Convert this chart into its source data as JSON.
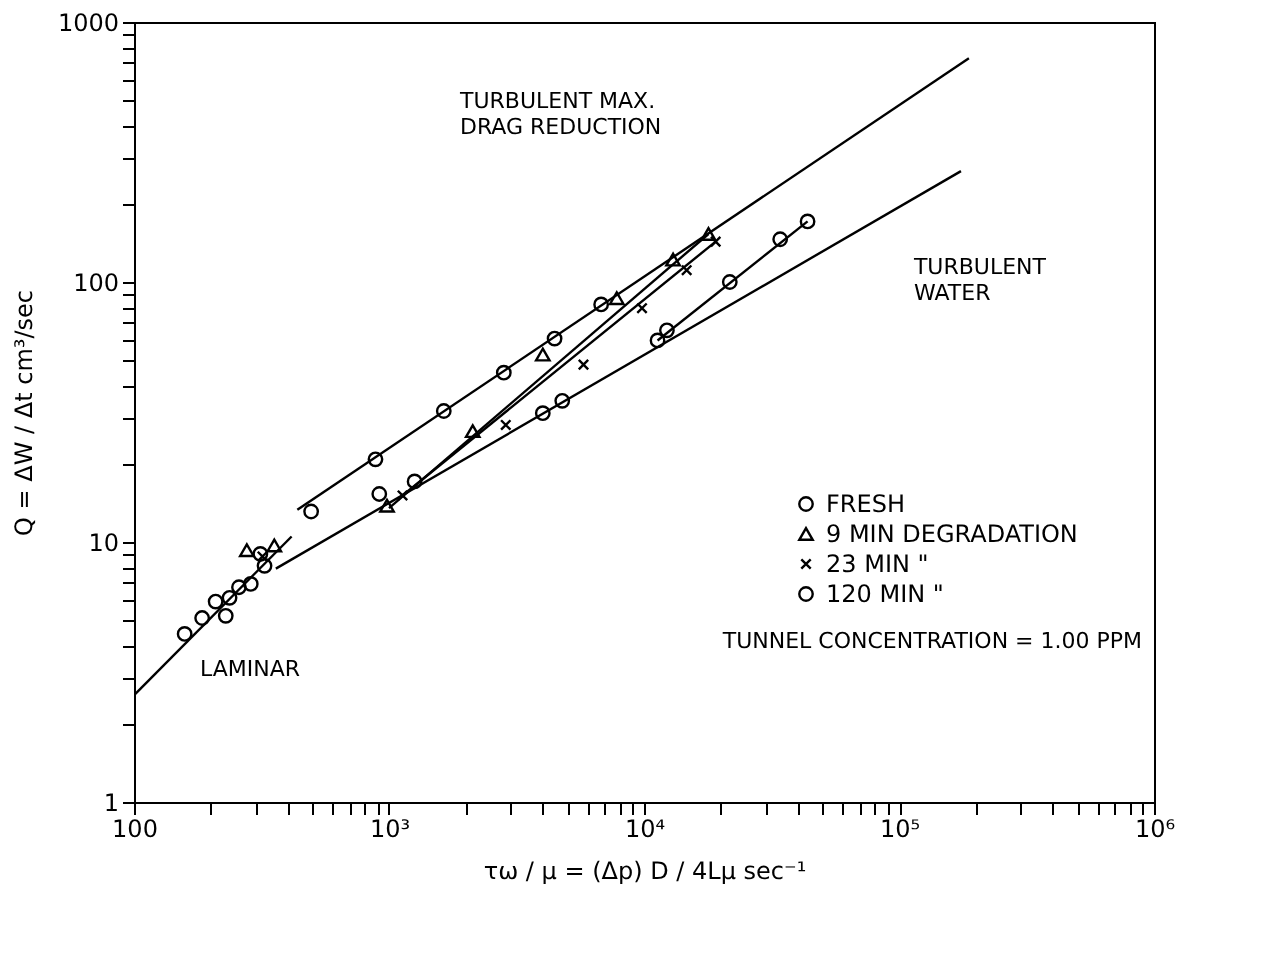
{
  "chart_data": {
    "type": "scatter",
    "xlabel": "τω / μ = (Δp) D / 4Lμ  sec⁻¹",
    "ylabel": "Q = ΔW / Δt  cm³/sec",
    "log": "xy",
    "grid": false,
    "legend": "bottom right",
    "xlim": [
      100,
      1000000
    ],
    "ylim": [
      1,
      1000
    ],
    "xticks": [
      {
        "value": 100,
        "label": "100"
      },
      {
        "value": 200,
        "label": null
      },
      {
        "value": 300,
        "label": null
      },
      {
        "value": 400,
        "label": null
      },
      {
        "value": 500,
        "label": null
      },
      {
        "value": 600,
        "label": null
      },
      {
        "value": 700,
        "label": null
      },
      {
        "value": 800,
        "label": null
      },
      {
        "value": 900,
        "label": null
      },
      {
        "value": 1000,
        "label": "10³"
      },
      {
        "value": 2000,
        "label": null
      },
      {
        "value": 3000,
        "label": null
      },
      {
        "value": 4000,
        "label": null
      },
      {
        "value": 5000,
        "label": null
      },
      {
        "value": 6000,
        "label": null
      },
      {
        "value": 7000,
        "label": null
      },
      {
        "value": 8000,
        "label": null
      },
      {
        "value": 9000,
        "label": null
      },
      {
        "value": 10000,
        "label": "10⁴"
      },
      {
        "value": 20000,
        "label": null
      },
      {
        "value": 30000,
        "label": null
      },
      {
        "value": 40000,
        "label": null
      },
      {
        "value": 50000,
        "label": null
      },
      {
        "value": 60000,
        "label": null
      },
      {
        "value": 70000,
        "label": null
      },
      {
        "value": 80000,
        "label": null
      },
      {
        "value": 90000,
        "label": null
      },
      {
        "value": 100000,
        "label": "10⁵"
      },
      {
        "value": 200000,
        "label": null
      },
      {
        "value": 300000,
        "label": null
      },
      {
        "value": 400000,
        "label": null
      },
      {
        "value": 500000,
        "label": null
      },
      {
        "value": 600000,
        "label": null
      },
      {
        "value": 700000,
        "label": null
      },
      {
        "value": 800000,
        "label": null
      },
      {
        "value": 900000,
        "label": null
      },
      {
        "value": 1000000,
        "label": "10⁶"
      }
    ],
    "yticks": [
      1,
      {
        "value": 2,
        "label": null
      },
      {
        "value": 3,
        "label": null
      },
      {
        "value": 4,
        "label": null
      },
      {
        "value": 5,
        "label": null
      },
      {
        "value": 6,
        "label": null
      },
      {
        "value": 7,
        "label": null
      },
      {
        "value": 8,
        "label": null
      },
      {
        "value": 9,
        "label": null
      },
      10,
      {
        "value": 20,
        "label": null
      },
      {
        "value": 30,
        "label": null
      },
      {
        "value": 40,
        "label": null
      },
      {
        "value": 50,
        "label": null
      },
      {
        "value": 60,
        "label": null
      },
      {
        "value": 70,
        "label": null
      },
      {
        "value": 80,
        "label": null
      },
      {
        "value": 90,
        "label": null
      },
      100,
      {
        "value": 200,
        "label": null
      },
      {
        "value": 300,
        "label": null
      },
      {
        "value": 400,
        "label": null
      },
      {
        "value": 500,
        "label": null
      },
      {
        "value": 600,
        "label": null
      },
      {
        "value": 700,
        "label": null
      },
      {
        "value": 800,
        "label": null
      },
      {
        "value": 900,
        "label": null
      },
      1000
    ],
    "series": [
      {
        "name": "FRESH",
        "color": "#000000",
        "marker": "circle",
        "x": [
          229,
          258,
          313,
          495,
          885,
          1640,
          2820,
          4460,
          6790
        ],
        "values": [
          5.2,
          6.7,
          9.0,
          13.1,
          20.8,
          31.9,
          44.8,
          60.6,
          82
        ]
      },
      {
        "name": "9 MIN DEGRADATION",
        "color": "#000000",
        "marker": "triangle",
        "x": [
          277,
          355,
          982,
          2130,
          4010,
          7820,
          13000,
          17900
        ],
        "values": [
          9.3,
          9.7,
          13.8,
          26.7,
          52.6,
          86.7,
          122,
          153
        ]
      },
      {
        "name": "23 MIN      \"",
        "color": "#000000",
        "marker": "cross",
        "x": [
          319,
          1130,
          2870,
          5790,
          9820,
          14700,
          19100
        ],
        "values": [
          8.8,
          15.1,
          28.2,
          48.1,
          79.3,
          111,
          143
        ]
      },
      {
        "name": "120 MIN      \"",
        "color": "#000000",
        "marker": "circle",
        "x": [
          158,
          185,
          209,
          237,
          287,
          325,
          916,
          1260,
          4010,
          4780,
          11300,
          12300,
          21700,
          34200,
          43800
        ],
        "values": [
          4.43,
          5.1,
          5.9,
          6.1,
          6.9,
          8.1,
          15.3,
          17.1,
          31.3,
          34.9,
          59.6,
          65.2,
          100,
          146,
          171
        ]
      },
      {
        "type": "line",
        "color": "#000000",
        "x": [
          101,
          415
        ],
        "values": [
          2.6,
          10.5
        ]
      },
      {
        "type": "line",
        "color": "#000000",
        "x": [
          437,
          188000
        ],
        "values": [
          13.3,
          725
        ]
      },
      {
        "type": "line",
        "color": "#000000",
        "x": [
          360,
          175000
        ],
        "values": [
          7.9,
          267
        ]
      },
      {
        "type": "line",
        "color": "#000000",
        "x": [
          1000,
          17900
        ],
        "values": [
          13.5,
          153
        ]
      },
      {
        "type": "line",
        "color": "#000000",
        "x": [
          1130,
          19100
        ],
        "values": [
          15.1,
          143
        ]
      },
      {
        "type": "line",
        "color": "#000000",
        "x": [
          11300,
          43800
        ],
        "values": [
          59.6,
          171
        ]
      }
    ],
    "annotations": [
      {
        "text": "TURBULENT\nWATER",
        "x": 150000,
        "y": 230
      },
      "TURBULENT MAX.\nDRAG REDUCTION",
      "LAMINAR",
      "TUNNEL CONCENTRATION = 1.00 PPM"
    ]
  }
}
